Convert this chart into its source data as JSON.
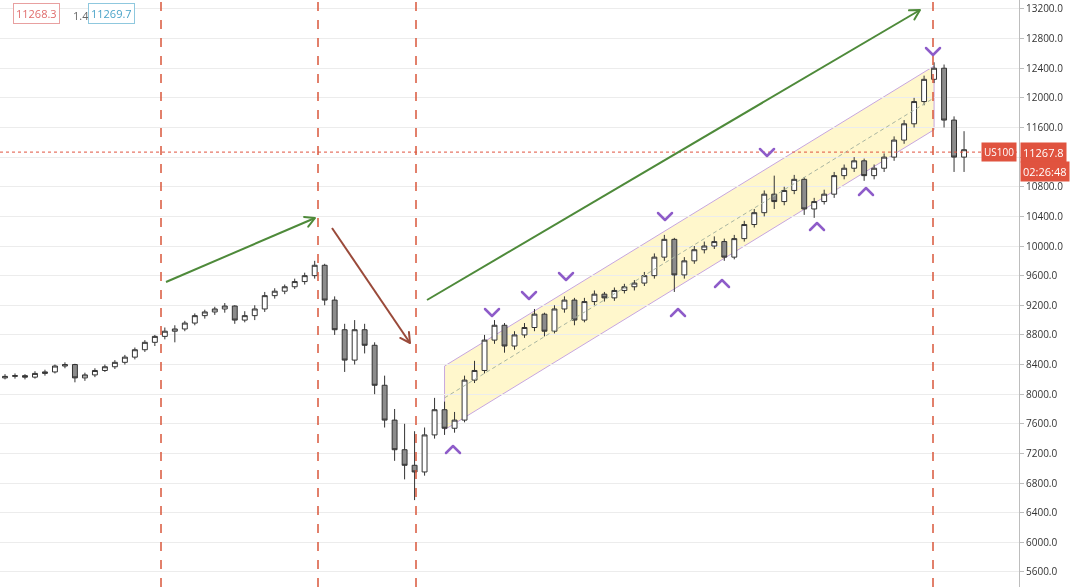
{
  "chart_data": {
    "type": "candlestick",
    "categories": [
      null,
      null,
      null,
      null,
      null,
      null,
      null,
      null,
      null,
      null,
      null,
      null,
      null,
      null,
      null,
      null,
      null,
      null,
      null,
      null,
      null,
      null,
      null,
      null,
      null,
      null,
      null,
      null,
      null,
      null,
      null,
      null,
      null,
      null,
      null,
      null,
      null,
      null,
      null,
      null,
      null,
      null,
      null,
      null,
      null,
      null,
      null,
      null,
      null,
      null,
      null,
      null,
      null,
      null,
      null,
      null,
      null,
      null,
      null,
      null,
      null,
      null,
      null,
      null,
      null,
      null,
      null,
      null,
      null,
      null,
      null,
      null,
      null,
      null,
      null,
      null,
      null,
      null,
      null,
      null,
      null,
      null,
      null,
      null,
      null,
      null,
      null,
      null,
      null,
      null,
      null,
      null,
      null,
      null,
      null,
      null,
      null,
      null,
      null,
      null,
      null,
      null
    ],
    "ohlc": [
      [
        8220,
        8270,
        8200,
        8240
      ],
      [
        8240,
        8280,
        8210,
        8250
      ],
      [
        8250,
        8270,
        8200,
        8230
      ],
      [
        8230,
        8310,
        8210,
        8280
      ],
      [
        8280,
        8330,
        8250,
        8300
      ],
      [
        8300,
        8400,
        8280,
        8380
      ],
      [
        8380,
        8430,
        8350,
        8400
      ],
      [
        8400,
        8410,
        8160,
        8220
      ],
      [
        8220,
        8290,
        8180,
        8260
      ],
      [
        8260,
        8350,
        8230,
        8320
      ],
      [
        8320,
        8400,
        8300,
        8370
      ],
      [
        8370,
        8460,
        8340,
        8430
      ],
      [
        8430,
        8530,
        8400,
        8500
      ],
      [
        8500,
        8630,
        8470,
        8600
      ],
      [
        8600,
        8730,
        8570,
        8700
      ],
      [
        8700,
        8800,
        8650,
        8780
      ],
      [
        8780,
        8900,
        8740,
        8850
      ],
      [
        8850,
        8930,
        8700,
        8880
      ],
      [
        8880,
        8990,
        8850,
        8960
      ],
      [
        8960,
        9090,
        8930,
        9060
      ],
      [
        9060,
        9140,
        9020,
        9110
      ],
      [
        9110,
        9180,
        9070,
        9150
      ],
      [
        9150,
        9230,
        9100,
        9190
      ],
      [
        9190,
        9200,
        8950,
        9000
      ],
      [
        9000,
        9120,
        8970,
        9060
      ],
      [
        9060,
        9200,
        9000,
        9150
      ],
      [
        9150,
        9380,
        9110,
        9330
      ],
      [
        9330,
        9430,
        9290,
        9390
      ],
      [
        9390,
        9480,
        9350,
        9450
      ],
      [
        9450,
        9560,
        9420,
        9520
      ],
      [
        9520,
        9640,
        9480,
        9600
      ],
      [
        9600,
        9800,
        9560,
        9740
      ],
      [
        9740,
        9760,
        9200,
        9270
      ],
      [
        9270,
        9320,
        8800,
        8870
      ],
      [
        8870,
        8950,
        8300,
        8460
      ],
      [
        8460,
        9000,
        8400,
        8870
      ],
      [
        8870,
        8950,
        8550,
        8660
      ],
      [
        8660,
        8700,
        8000,
        8120
      ],
      [
        8120,
        8250,
        7550,
        7650
      ],
      [
        7650,
        7800,
        7100,
        7250
      ],
      [
        7250,
        7600,
        6850,
        7040
      ],
      [
        7040,
        7500,
        6570,
        6950
      ],
      [
        6950,
        7550,
        6900,
        7450
      ],
      [
        7450,
        7950,
        7400,
        7790
      ],
      [
        7790,
        7900,
        7450,
        7540
      ],
      [
        7540,
        7760,
        7480,
        7650
      ],
      [
        7650,
        8250,
        7620,
        8190
      ],
      [
        8190,
        8450,
        8150,
        8320
      ],
      [
        8320,
        8800,
        8280,
        8730
      ],
      [
        8730,
        9000,
        8680,
        8930
      ],
      [
        8930,
        8960,
        8560,
        8650
      ],
      [
        8650,
        8850,
        8600,
        8800
      ],
      [
        8800,
        8960,
        8760,
        8900
      ],
      [
        8900,
        9150,
        8850,
        9080
      ],
      [
        9080,
        9100,
        8780,
        8850
      ],
      [
        8850,
        9200,
        8820,
        9150
      ],
      [
        9150,
        9320,
        9100,
        9270
      ],
      [
        9270,
        9300,
        8930,
        9000
      ],
      [
        9000,
        9300,
        8970,
        9250
      ],
      [
        9250,
        9400,
        9200,
        9350
      ],
      [
        9350,
        9380,
        9250,
        9300
      ],
      [
        9300,
        9440,
        9260,
        9400
      ],
      [
        9400,
        9490,
        9360,
        9450
      ],
      [
        9450,
        9540,
        9400,
        9500
      ],
      [
        9500,
        9650,
        9460,
        9600
      ],
      [
        9600,
        9900,
        9560,
        9850
      ],
      [
        9850,
        10150,
        9800,
        10090
      ],
      [
        10090,
        10110,
        9380,
        9610
      ],
      [
        9610,
        9850,
        9560,
        9800
      ],
      [
        9800,
        10000,
        9760,
        9950
      ],
      [
        9950,
        10060,
        9900,
        10000
      ],
      [
        10000,
        10130,
        9960,
        10060
      ],
      [
        10060,
        10100,
        9800,
        9850
      ],
      [
        9850,
        10150,
        9820,
        10100
      ],
      [
        10100,
        10340,
        10060,
        10290
      ],
      [
        10290,
        10500,
        10250,
        10450
      ],
      [
        10450,
        10750,
        10400,
        10700
      ],
      [
        10700,
        10950,
        10500,
        10600
      ],
      [
        10600,
        10800,
        10550,
        10750
      ],
      [
        10750,
        10960,
        10700,
        10900
      ],
      [
        10900,
        10930,
        10420,
        10500
      ],
      [
        10500,
        10650,
        10380,
        10600
      ],
      [
        10600,
        10760,
        10560,
        10700
      ],
      [
        10700,
        11000,
        10650,
        10950
      ],
      [
        10950,
        11100,
        10900,
        11050
      ],
      [
        11050,
        11200,
        11000,
        11150
      ],
      [
        11150,
        11180,
        10880,
        10950
      ],
      [
        10950,
        11100,
        10900,
        11050
      ],
      [
        11050,
        11250,
        11000,
        11200
      ],
      [
        11200,
        11480,
        11150,
        11430
      ],
      [
        11430,
        11700,
        11380,
        11650
      ],
      [
        11650,
        12000,
        11600,
        11950
      ],
      [
        11950,
        12300,
        11900,
        12250
      ],
      [
        12250,
        12480,
        12200,
        12400
      ],
      [
        12400,
        12450,
        11600,
        11700
      ],
      [
        11700,
        11750,
        11000,
        11200
      ],
      [
        11200,
        11550,
        11000,
        11300
      ],
      null,
      null,
      null,
      null,
      null
    ],
    "series": [
      {
        "type": "line",
        "color": "#a9b5a0",
        "line_style": "dashed",
        "values": [
          null,
          null,
          null,
          null,
          null,
          null,
          null,
          null,
          null,
          null,
          null,
          null,
          null,
          null,
          null,
          null,
          null,
          null,
          null,
          null,
          null,
          null,
          null,
          null,
          null,
          null,
          null,
          null,
          null,
          null,
          null,
          null,
          null,
          null,
          null,
          null,
          null,
          null,
          null,
          null,
          null,
          null,
          null,
          null,
          7950,
          null,
          null,
          null,
          null,
          null,
          null,
          null,
          null,
          null,
          null,
          null,
          null,
          null,
          null,
          null,
          null,
          null,
          null,
          null,
          null,
          null,
          null,
          null,
          null,
          null,
          null,
          null,
          null,
          null,
          null,
          null,
          null,
          null,
          null,
          null,
          null,
          null,
          null,
          null,
          null,
          null,
          null,
          null,
          null,
          null,
          null,
          null,
          null,
          12000,
          null,
          null,
          null,
          null,
          null,
          null,
          null,
          null
        ],
        "lower": [
          null,
          null,
          null,
          null,
          null,
          null,
          null,
          null,
          null,
          null,
          null,
          null,
          null,
          null,
          null,
          null,
          null,
          null,
          null,
          null,
          null,
          null,
          null,
          null,
          null,
          null,
          null,
          null,
          null,
          null,
          null,
          null,
          null,
          null,
          null,
          null,
          null,
          null,
          null,
          null,
          null,
          null,
          null,
          null,
          7520,
          null,
          null,
          null,
          null,
          null,
          null,
          null,
          null,
          null,
          null,
          null,
          null,
          null,
          null,
          null,
          null,
          null,
          null,
          null,
          null,
          null,
          null,
          null,
          null,
          null,
          null,
          null,
          null,
          null,
          null,
          null,
          null,
          null,
          null,
          null,
          null,
          null,
          null,
          null,
          null,
          null,
          null,
          null,
          null,
          null,
          null,
          null,
          null,
          11570,
          null,
          null,
          null,
          null,
          null,
          null,
          null,
          null
        ],
        "upper": [
          null,
          null,
          null,
          null,
          null,
          null,
          null,
          null,
          null,
          null,
          null,
          null,
          null,
          null,
          null,
          null,
          null,
          null,
          null,
          null,
          null,
          null,
          null,
          null,
          null,
          null,
          null,
          null,
          null,
          null,
          null,
          null,
          null,
          null,
          null,
          null,
          null,
          null,
          null,
          null,
          null,
          null,
          null,
          null,
          8380,
          null,
          null,
          null,
          null,
          null,
          null,
          null,
          null,
          null,
          null,
          null,
          null,
          null,
          null,
          null,
          null,
          null,
          null,
          null,
          null,
          null,
          null,
          null,
          null,
          null,
          null,
          null,
          null,
          null,
          null,
          null,
          null,
          null,
          null,
          null,
          null,
          null,
          null,
          null,
          null,
          null,
          null,
          null,
          null,
          null,
          null,
          null,
          null,
          12430,
          null,
          null,
          null,
          null,
          null,
          null,
          null,
          null
        ]
      }
    ],
    "ylim": [
      5397,
      13321
    ],
    "yticks": [
      {
        "value": 5600,
        "label": "5600.0"
      },
      {
        "value": 6000,
        "label": "6000.0"
      },
      {
        "value": 6400,
        "label": "6400.0"
      },
      {
        "value": 6800,
        "label": "6800.0"
      },
      {
        "value": 7200,
        "label": "7200.0"
      },
      {
        "value": 7600,
        "label": "7600.0"
      },
      {
        "value": 8000,
        "label": "8000.0"
      },
      {
        "value": 8400,
        "label": "8400.0"
      },
      {
        "value": 8800,
        "label": "8800.0"
      },
      {
        "value": 9200,
        "label": "9200.0"
      },
      {
        "value": 9600,
        "label": "9600.0"
      },
      {
        "value": 10000,
        "label": "10000.0"
      },
      {
        "value": 10400,
        "label": "10400.0"
      },
      {
        "value": 10800,
        "label": "10800.0"
      },
      {
        "value": 11200,
        "label": null
      },
      {
        "value": 11600,
        "label": "11600.0"
      },
      {
        "value": 12000,
        "label": "12000.0"
      },
      {
        "value": 12400,
        "label": "12400.0"
      },
      {
        "value": 12800,
        "label": "12800.0"
      },
      {
        "value": 13200,
        "label": "13200.0"
      }
    ],
    "ref_lines": [
      {
        "axis": "y",
        "value": 11267.8,
        "label": "US100",
        "color": "#e0533f",
        "line_style": "dotted"
      }
    ],
    "annotations": [
      "11268.3",
      "1.4",
      "11269.7",
      "11267.8",
      "02:26:48"
    ],
    "grid": "y",
    "tick_labels": "y"
  }
}
